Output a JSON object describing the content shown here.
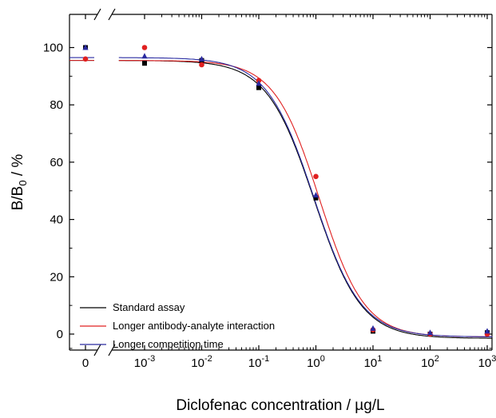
{
  "chart_data": {
    "type": "scatter",
    "xlabel": "Diclofenac concentration / µg/L",
    "ylabel_main": "B/B",
    "ylabel_sub": "0",
    "ylabel_tail": " / %",
    "xscale": "log with axis break (zero point)",
    "ylim": [
      -8,
      108
    ],
    "yticks": [
      0,
      20,
      40,
      60,
      80,
      100
    ],
    "x_tick_labels": [
      {
        "base": "0",
        "exp": ""
      },
      {
        "base": "10",
        "exp": "-3"
      },
      {
        "base": "10",
        "exp": "-2"
      },
      {
        "base": "10",
        "exp": "-1"
      },
      {
        "base": "10",
        "exp": "0"
      },
      {
        "base": "10",
        "exp": "1"
      },
      {
        "base": "10",
        "exp": "2"
      },
      {
        "base": "10",
        "exp": "3"
      }
    ],
    "x": [
      0,
      0.001,
      0.01,
      0.1,
      1,
      10,
      100,
      1000
    ],
    "legend_position": "bottom-left",
    "series": [
      {
        "name": "Standard assay",
        "color": "#000000",
        "marker": "square",
        "values": [
          100,
          94.5,
          95.5,
          86,
          47.5,
          1,
          0,
          0.5
        ],
        "fit": {
          "top": 95.5,
          "bottom": -1.5,
          "ic50": 0.93,
          "hill": 1.05
        }
      },
      {
        "name": "Longer antibody-analyte interaction",
        "color": "#e02020",
        "marker": "circle",
        "values": [
          96,
          100,
          94,
          88.5,
          55,
          1.5,
          0,
          0
        ],
        "fit": {
          "top": 95.5,
          "bottom": -1,
          "ic50": 1.15,
          "hill": 1.1
        }
      },
      {
        "name": "Longer competition time",
        "color": "#2a2aa0",
        "marker": "triangle",
        "values": [
          100,
          97,
          96,
          87.5,
          48.5,
          2,
          0.5,
          1
        ],
        "fit": {
          "top": 96.5,
          "bottom": -1,
          "ic50": 0.92,
          "hill": 1.05
        }
      }
    ]
  }
}
